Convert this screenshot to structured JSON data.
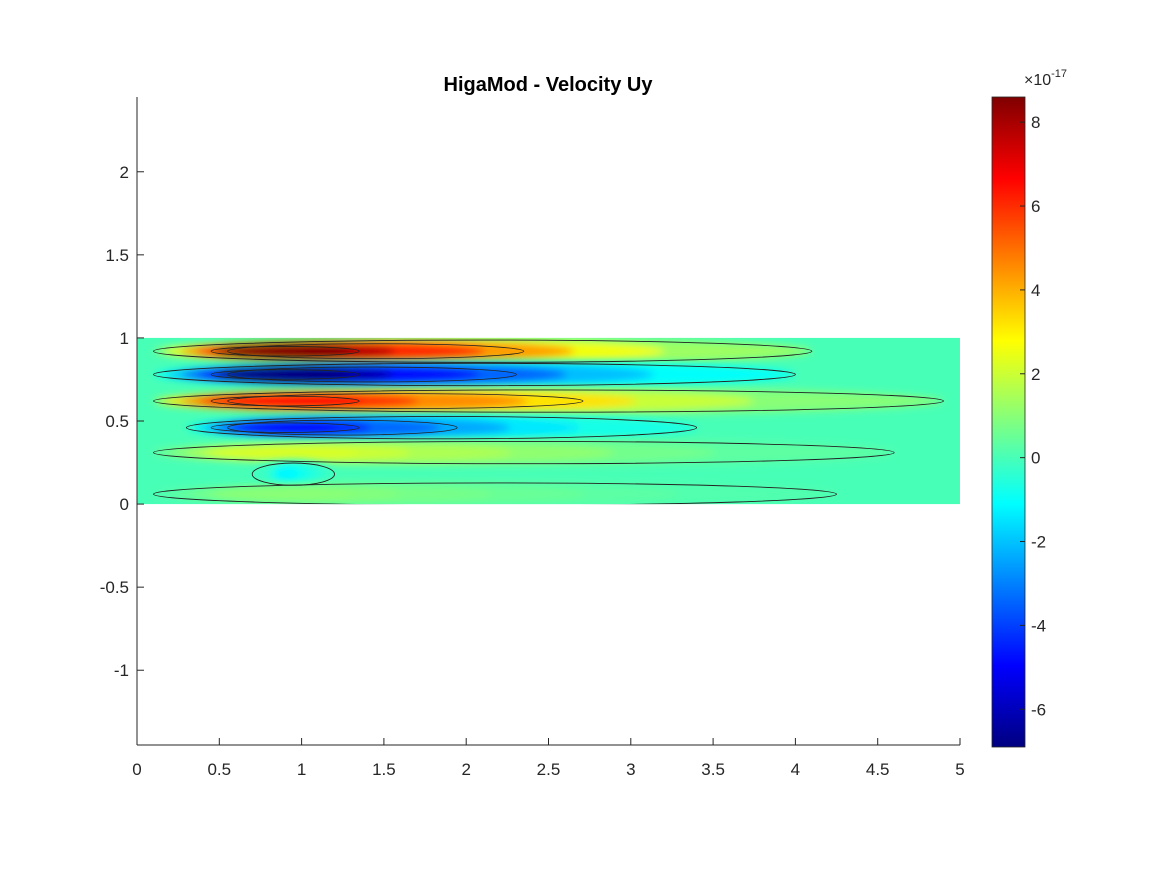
{
  "chart_data": {
    "type": "heatmap",
    "title": "HigaMod - Velocity Uy",
    "xlabel": "",
    "ylabel": "",
    "xlim": [
      0,
      5
    ],
    "ylim": [
      -1.45,
      2.45
    ],
    "x_ticks": [
      0,
      0.5,
      1,
      1.5,
      2,
      2.5,
      3,
      3.5,
      4,
      4.5,
      5
    ],
    "x_tick_labels": [
      "0",
      "0.5",
      "1",
      "1.5",
      "2",
      "2.5",
      "3",
      "3.5",
      "4",
      "4.5",
      "5"
    ],
    "y_ticks": [
      -1,
      -0.5,
      0,
      0.5,
      1,
      1.5,
      2
    ],
    "y_tick_labels": [
      "-1",
      "-0.5",
      "0",
      "0.5",
      "1",
      "1.5",
      "2"
    ],
    "domain": {
      "x": [
        0,
        5
      ],
      "y": [
        0,
        1
      ]
    },
    "field": "Uy",
    "colormap": "jet",
    "colorbar": {
      "min": -6.9,
      "max": 8.6,
      "exponent_label": "×10",
      "exponent_power": "-17",
      "ticks": [
        -6,
        -4,
        -2,
        0,
        2,
        4,
        6,
        8
      ],
      "tick_labels": [
        "-6",
        "-4",
        "-2",
        "0",
        "2",
        "4",
        "6",
        "8"
      ]
    },
    "bands": [
      {
        "y": 0.92,
        "amp": 8.6,
        "x0": 0.1,
        "x1": 4.1
      },
      {
        "y": 0.78,
        "amp": -6.9,
        "x0": 0.1,
        "x1": 4.0
      },
      {
        "y": 0.62,
        "amp": 6.5,
        "x0": 0.1,
        "x1": 4.9
      },
      {
        "y": 0.46,
        "amp": -4.8,
        "x0": 0.3,
        "x1": 3.4
      },
      {
        "y": 0.31,
        "amp": 2.2,
        "x0": 0.1,
        "x1": 4.6
      },
      {
        "y": 0.18,
        "amp": -1.2,
        "x0": 0.7,
        "x1": 1.2
      },
      {
        "y": 0.06,
        "amp": 1.0,
        "x0": 0.1,
        "x1": 4.25
      }
    ]
  }
}
